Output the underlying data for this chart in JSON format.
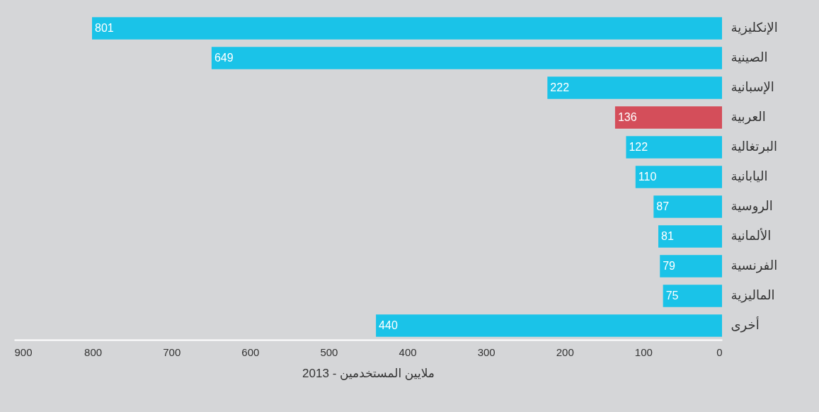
{
  "chart_data": {
    "type": "bar",
    "orientation": "horizontal",
    "xlabel": "ملايين المستخدمين - 2013",
    "categories": [
      "الإنكليزية",
      "الصينية",
      "الإسبانية",
      "العربية",
      "البرتغالية",
      "اليابانية",
      "الروسية",
      "الألمانية",
      "الفرنسية",
      "الماليزية",
      "أخرى"
    ],
    "values": [
      801,
      649,
      222,
      136,
      122,
      110,
      87,
      81,
      79,
      75,
      440
    ],
    "colors": [
      "#1ac3e8",
      "#1ac3e8",
      "#1ac3e8",
      "#d44e5a",
      "#1ac3e8",
      "#1ac3e8",
      "#1ac3e8",
      "#1ac3e8",
      "#1ac3e8",
      "#1ac3e8",
      "#1ac3e8"
    ],
    "xlim": [
      900,
      0
    ],
    "xticks": [
      900,
      800,
      700,
      600,
      500,
      400,
      300,
      200,
      100,
      0
    ],
    "data_labels": true,
    "grid": false
  }
}
